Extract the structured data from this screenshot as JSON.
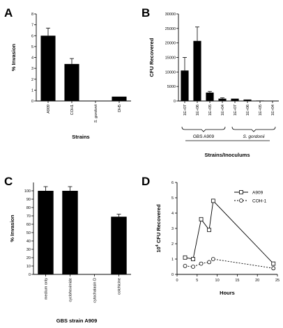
{
  "chart_data": [
    {
      "panel": "A",
      "type": "bar",
      "ylabel": "% Invasion",
      "xlabel": "Strains",
      "categories": [
        "A909",
        "COH1",
        "S. gordonii",
        "DH5"
      ],
      "values": [
        6.0,
        3.4,
        0.0,
        0.4
      ],
      "errors": [
        0.7,
        0.5,
        0,
        0
      ],
      "ylim": [
        0,
        8
      ],
      "yticks": [
        "0",
        "1",
        "2",
        "3",
        "4",
        "5",
        "6",
        "7",
        "8"
      ]
    },
    {
      "panel": "B",
      "type": "bar",
      "ylabel": "CFU Recovered",
      "xlabel": "Strains/Inoculums",
      "categories": [
        "1E+07",
        "1E+06",
        "1E+05",
        "1E+04",
        "1E+07",
        "1E+06",
        "1E+05",
        "1E+04"
      ],
      "values": [
        10500,
        20700,
        2900,
        800,
        800,
        500,
        150,
        100
      ],
      "errors": [
        4500,
        4800,
        400,
        300,
        0,
        0,
        0,
        0
      ],
      "ylim": [
        0,
        30000
      ],
      "yticks": [
        "0",
        "5000",
        "10000",
        "15000",
        "20000",
        "25000",
        "30000"
      ],
      "groups": [
        "GBS A909",
        "S. gordonii"
      ]
    },
    {
      "panel": "C",
      "type": "bar",
      "ylabel": "% Invasion",
      "xlabel": "GBS strain A909",
      "categories": [
        "medium only",
        "cycloheximide",
        "cytochalasin D",
        "colchicine"
      ],
      "values": [
        100,
        100,
        0,
        69
      ],
      "errors": [
        5,
        5,
        0,
        3
      ],
      "ylim": [
        0,
        110
      ],
      "yticks": [
        "0",
        "10",
        "20",
        "30",
        "40",
        "50",
        "60",
        "70",
        "80",
        "90",
        "100"
      ]
    },
    {
      "panel": "D",
      "type": "line",
      "ylabel_prefix": "10",
      "ylabel_exp": "4",
      "ylabel_rest": " CFU Recovered",
      "xlabel": "Hours",
      "xlim": [
        0,
        25
      ],
      "ylim": [
        0,
        6
      ],
      "xticks": [
        "0",
        "5",
        "10",
        "15",
        "20",
        "25"
      ],
      "yticks": [
        "0",
        "1",
        "2",
        "3",
        "4",
        "5",
        "6"
      ],
      "series": [
        {
          "name": "A909",
          "x": [
            2,
            4,
            6,
            8,
            9,
            24
          ],
          "y": [
            1.1,
            1.0,
            3.6,
            2.9,
            4.8,
            0.7
          ],
          "style": "solid",
          "marker": "square"
        },
        {
          "name": "COH-1",
          "x": [
            2,
            4,
            6,
            8,
            9,
            24
          ],
          "y": [
            0.55,
            0.5,
            0.7,
            0.8,
            1.0,
            0.4
          ],
          "style": "dashed",
          "marker": "circle"
        }
      ]
    }
  ]
}
